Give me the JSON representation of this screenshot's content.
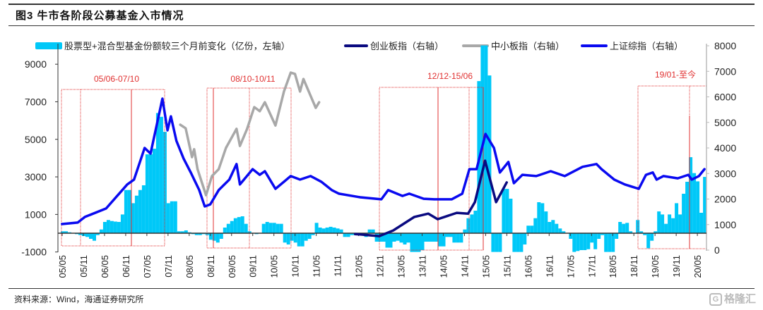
{
  "header": {
    "title": "图3   牛市各阶段公募基金入市情况"
  },
  "footer": {
    "source": "资料来源：Wind，海通证券研究所",
    "watermark": "格隆汇",
    "watermark_icon": "G"
  },
  "chart_data": {
    "type": "bar+line",
    "title": "牛市各阶段公募基金入市情况",
    "colors": {
      "bars": "#00c8f8",
      "chinext": "#0a0a80",
      "sme": "#a8a8a8",
      "shcomp": "#0a0af0",
      "annotation": "#e03030",
      "axis": "#222222"
    },
    "legend": [
      {
        "label": "股票型+混合型基金份额较三个月前变化（亿份，左轴）",
        "type": "bar"
      },
      {
        "label": "创业板指（右轴）",
        "type": "line"
      },
      {
        "label": "中小板指（右轴）",
        "type": "line"
      },
      {
        "label": "上证综指（右轴）",
        "type": "line"
      }
    ],
    "left_axis": {
      "ylim": [
        -1000,
        10000
      ],
      "ticks": [
        9000,
        7000,
        5000,
        3000,
        1000,
        -1000
      ]
    },
    "right_axis": {
      "ylim": [
        0,
        8000
      ],
      "ticks": [
        8000,
        7000,
        6000,
        5000,
        4000,
        3000,
        2000,
        1000,
        0
      ]
    },
    "x_tick_labels": [
      "05/05",
      "05/11",
      "06/05",
      "06/11",
      "07/05",
      "07/11",
      "08/05",
      "08/11",
      "09/05",
      "09/11",
      "10/05",
      "10/11",
      "11/05",
      "11/11",
      "12/05",
      "12/11",
      "13/05",
      "13/11",
      "14/05",
      "14/11",
      "15/05",
      "15/11",
      "16/05",
      "16/11",
      "17/05",
      "17/11",
      "18/05",
      "18/11",
      "19/05",
      "19/11",
      "20/05"
    ],
    "periods": [
      {
        "label": "05/06-07/10"
      },
      {
        "label": "08/10-10/11"
      },
      {
        "label": "12/12-15/06"
      },
      {
        "label": "19/01-至今"
      }
    ],
    "fund_share_change": {
      "start_month": "2005-05",
      "values": [
        100,
        100,
        50,
        0,
        -50,
        -100,
        -150,
        -200,
        -300,
        -400,
        -100,
        200,
        600,
        700,
        650,
        620,
        600,
        1000,
        2300,
        2300,
        1600,
        2000,
        2300,
        2550,
        4200,
        4200,
        4500,
        6400,
        6200,
        5400,
        1600,
        1700,
        1700,
        100,
        100,
        150,
        50,
        -50,
        -100,
        -100,
        -50,
        -100,
        -350,
        -400,
        -500,
        -300,
        300,
        500,
        650,
        800,
        860,
        900,
        500,
        100,
        0,
        -50,
        0,
        500,
        600,
        550,
        550,
        500,
        500,
        -500,
        -600,
        -400,
        -500,
        -700,
        -700,
        -400,
        -300,
        -100,
        550,
        300,
        250,
        300,
        340,
        300,
        250,
        200,
        -200,
        -200,
        -100,
        -100,
        -100,
        -100,
        -200,
        200,
        200,
        -450,
        -450,
        -450,
        -770,
        -770,
        -450,
        -400,
        -500,
        -600,
        -500,
        -1000,
        -1000,
        -1000,
        -900,
        -450,
        -450,
        -450,
        -450,
        -700,
        -700,
        -200,
        -200,
        -500,
        -500,
        -500,
        200,
        800,
        1000,
        1200,
        8100,
        10000,
        10000,
        8400,
        -1000,
        -1000,
        -1000,
        2360,
        2360,
        1840,
        -1000,
        -1000,
        -1000,
        -600,
        400,
        400,
        800,
        1650,
        1600,
        1160,
        600,
        700,
        500,
        250,
        100,
        0,
        -300,
        -1000,
        -950,
        -900,
        -900,
        -850,
        -500,
        -850,
        -300,
        -100,
        -1000,
        -1000,
        -1000,
        -300,
        600,
        500,
        550,
        100,
        0,
        700,
        100,
        -100,
        -800,
        -400,
        100,
        1160,
        1000,
        500,
        1000,
        800,
        1600,
        1000,
        2100,
        2740,
        4050,
        3200,
        2760,
        1090,
        3000
      ]
    },
    "series": [
      {
        "name": "上证综指",
        "points": [
          [
            2005.33,
            1020
          ],
          [
            2005.7,
            1080
          ],
          [
            2005.87,
            1300
          ],
          [
            2006.37,
            1630
          ],
          [
            2006.87,
            2570
          ],
          [
            2007.03,
            2760
          ],
          [
            2007.28,
            4000
          ],
          [
            2007.42,
            3780
          ],
          [
            2007.7,
            5930
          ],
          [
            2007.82,
            4690
          ],
          [
            2007.9,
            5240
          ],
          [
            2008.03,
            4280
          ],
          [
            2008.2,
            3590
          ],
          [
            2008.37,
            3040
          ],
          [
            2008.57,
            2350
          ],
          [
            2008.7,
            1710
          ],
          [
            2008.83,
            1790
          ],
          [
            2009.03,
            2350
          ],
          [
            2009.28,
            2760
          ],
          [
            2009.45,
            3370
          ],
          [
            2009.53,
            2570
          ],
          [
            2009.83,
            3170
          ],
          [
            2010.0,
            2950
          ],
          [
            2010.12,
            3090
          ],
          [
            2010.37,
            2400
          ],
          [
            2010.53,
            2620
          ],
          [
            2010.73,
            2900
          ],
          [
            2010.95,
            2760
          ],
          [
            2011.2,
            2900
          ],
          [
            2011.45,
            2680
          ],
          [
            2011.7,
            2350
          ],
          [
            2011.87,
            2210
          ],
          [
            2012.37,
            2070
          ],
          [
            2012.87,
            1990
          ],
          [
            2013.03,
            2350
          ],
          [
            2013.37,
            2120
          ],
          [
            2013.53,
            2210
          ],
          [
            2013.87,
            2010
          ],
          [
            2014.12,
            1990
          ],
          [
            2014.53,
            1990
          ],
          [
            2014.78,
            2210
          ],
          [
            2014.95,
            3170
          ],
          [
            2015.12,
            3170
          ],
          [
            2015.33,
            4550
          ],
          [
            2015.53,
            4000
          ],
          [
            2015.67,
            3040
          ],
          [
            2015.87,
            3450
          ],
          [
            2016.0,
            2620
          ],
          [
            2016.2,
            2950
          ],
          [
            2016.53,
            2900
          ],
          [
            2016.87,
            3090
          ],
          [
            2017.2,
            2900
          ],
          [
            2017.62,
            3260
          ],
          [
            2017.95,
            3370
          ],
          [
            2018.07,
            3170
          ],
          [
            2018.37,
            2760
          ],
          [
            2018.62,
            2570
          ],
          [
            2018.95,
            2400
          ],
          [
            2019.12,
            2950
          ],
          [
            2019.28,
            3040
          ],
          [
            2019.37,
            2760
          ],
          [
            2019.53,
            2900
          ],
          [
            2019.87,
            2810
          ],
          [
            2020.12,
            2950
          ],
          [
            2020.2,
            2760
          ],
          [
            2020.37,
            2900
          ],
          [
            2020.5,
            3170
          ]
        ]
      },
      {
        "name": "创业板指",
        "points": [
          [
            2012.25,
            630
          ],
          [
            2012.82,
            550
          ],
          [
            2013.15,
            770
          ],
          [
            2013.65,
            1300
          ],
          [
            2013.98,
            1430
          ],
          [
            2014.2,
            1210
          ],
          [
            2014.65,
            1460
          ],
          [
            2014.92,
            1430
          ],
          [
            2015.08,
            1880
          ],
          [
            2015.32,
            3500
          ],
          [
            2015.58,
            1880
          ],
          [
            2015.83,
            2650
          ]
        ]
      },
      {
        "name": "中小板指",
        "points": [
          [
            2008.12,
            4910
          ],
          [
            2008.25,
            4770
          ],
          [
            2008.4,
            3640
          ],
          [
            2008.45,
            3950
          ],
          [
            2008.53,
            3170
          ],
          [
            2008.73,
            2150
          ],
          [
            2008.87,
            2900
          ],
          [
            2009.03,
            3170
          ],
          [
            2009.2,
            4000
          ],
          [
            2009.45,
            4750
          ],
          [
            2009.53,
            4080
          ],
          [
            2009.7,
            4750
          ],
          [
            2009.87,
            5600
          ],
          [
            2010.0,
            5440
          ],
          [
            2010.12,
            5790
          ],
          [
            2010.37,
            4880
          ],
          [
            2010.57,
            6210
          ],
          [
            2010.73,
            6950
          ],
          [
            2010.83,
            6900
          ],
          [
            2010.95,
            6210
          ],
          [
            2011.03,
            6700
          ],
          [
            2011.32,
            5570
          ],
          [
            2011.4,
            5790
          ]
        ]
      }
    ]
  }
}
